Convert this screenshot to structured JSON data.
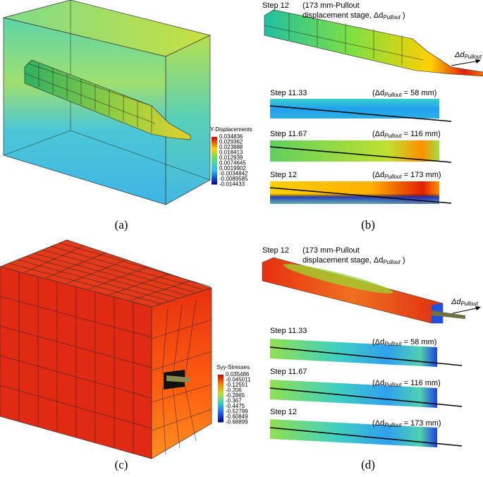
{
  "panel_a": {
    "legend": {
      "title": "Y-Displacements",
      "labels": [
        "0.034836",
        "0.029362",
        "0.023888",
        "0.018413",
        "0.012939",
        "0.0074645",
        "0.0019902",
        "-0.0034842",
        "-0.0089585",
        "-0.014433"
      ]
    },
    "caption": "(a)"
  },
  "panel_b": {
    "header": {
      "step": "Step 12",
      "line1": "(173 mm-Pullout",
      "line2": "displacement stage, Δd",
      "line2_sub": "Pullout",
      "line2_end": " )"
    },
    "arrow_label": {
      "text": "Δd",
      "sub": "Pullout"
    },
    "strips": [
      {
        "step": "Step 11.33",
        "open": "(Δd",
        "sub": "Pullout",
        "close": " = 58 mm)"
      },
      {
        "step": "Step 11.67",
        "open": "(Δd",
        "sub": "Pullout",
        "close": " = 116 mm)"
      },
      {
        "step": "Step 12",
        "open": "(Δd",
        "sub": "Pullout",
        "close": " = 173 mm)"
      }
    ],
    "caption": "(b)"
  },
  "panel_c": {
    "legend": {
      "title": "Syy-Stresses",
      "labels": [
        "0.035486",
        "-0.045011",
        "-0.12551",
        "-0.206",
        "-0.2865",
        "-0.367",
        "-0.4475",
        "-0.52799",
        "-0.60849",
        "-0.68899"
      ]
    },
    "caption": "(c)"
  },
  "panel_d": {
    "header": {
      "step": "Step 12",
      "line1": "(173 mm-Pullout",
      "line2": "displacement stage, Δd",
      "line2_sub": "Pullout",
      "line2_end": " )"
    },
    "arrow_label": {
      "text": "Δd",
      "sub": "Pullout"
    },
    "strips": [
      {
        "step": "Step 11.33",
        "open": "(Δd",
        "sub": "Pullout",
        "close": " = 58 mm)"
      },
      {
        "step": "Step 11.67",
        "open": "(Δd",
        "sub": "Pullout",
        "close": " = 116 mm)"
      },
      {
        "step": "Step 12",
        "open": "(Δd",
        "sub": "Pullout",
        "close": " = 173 mm)"
      }
    ],
    "caption": "(d)"
  }
}
